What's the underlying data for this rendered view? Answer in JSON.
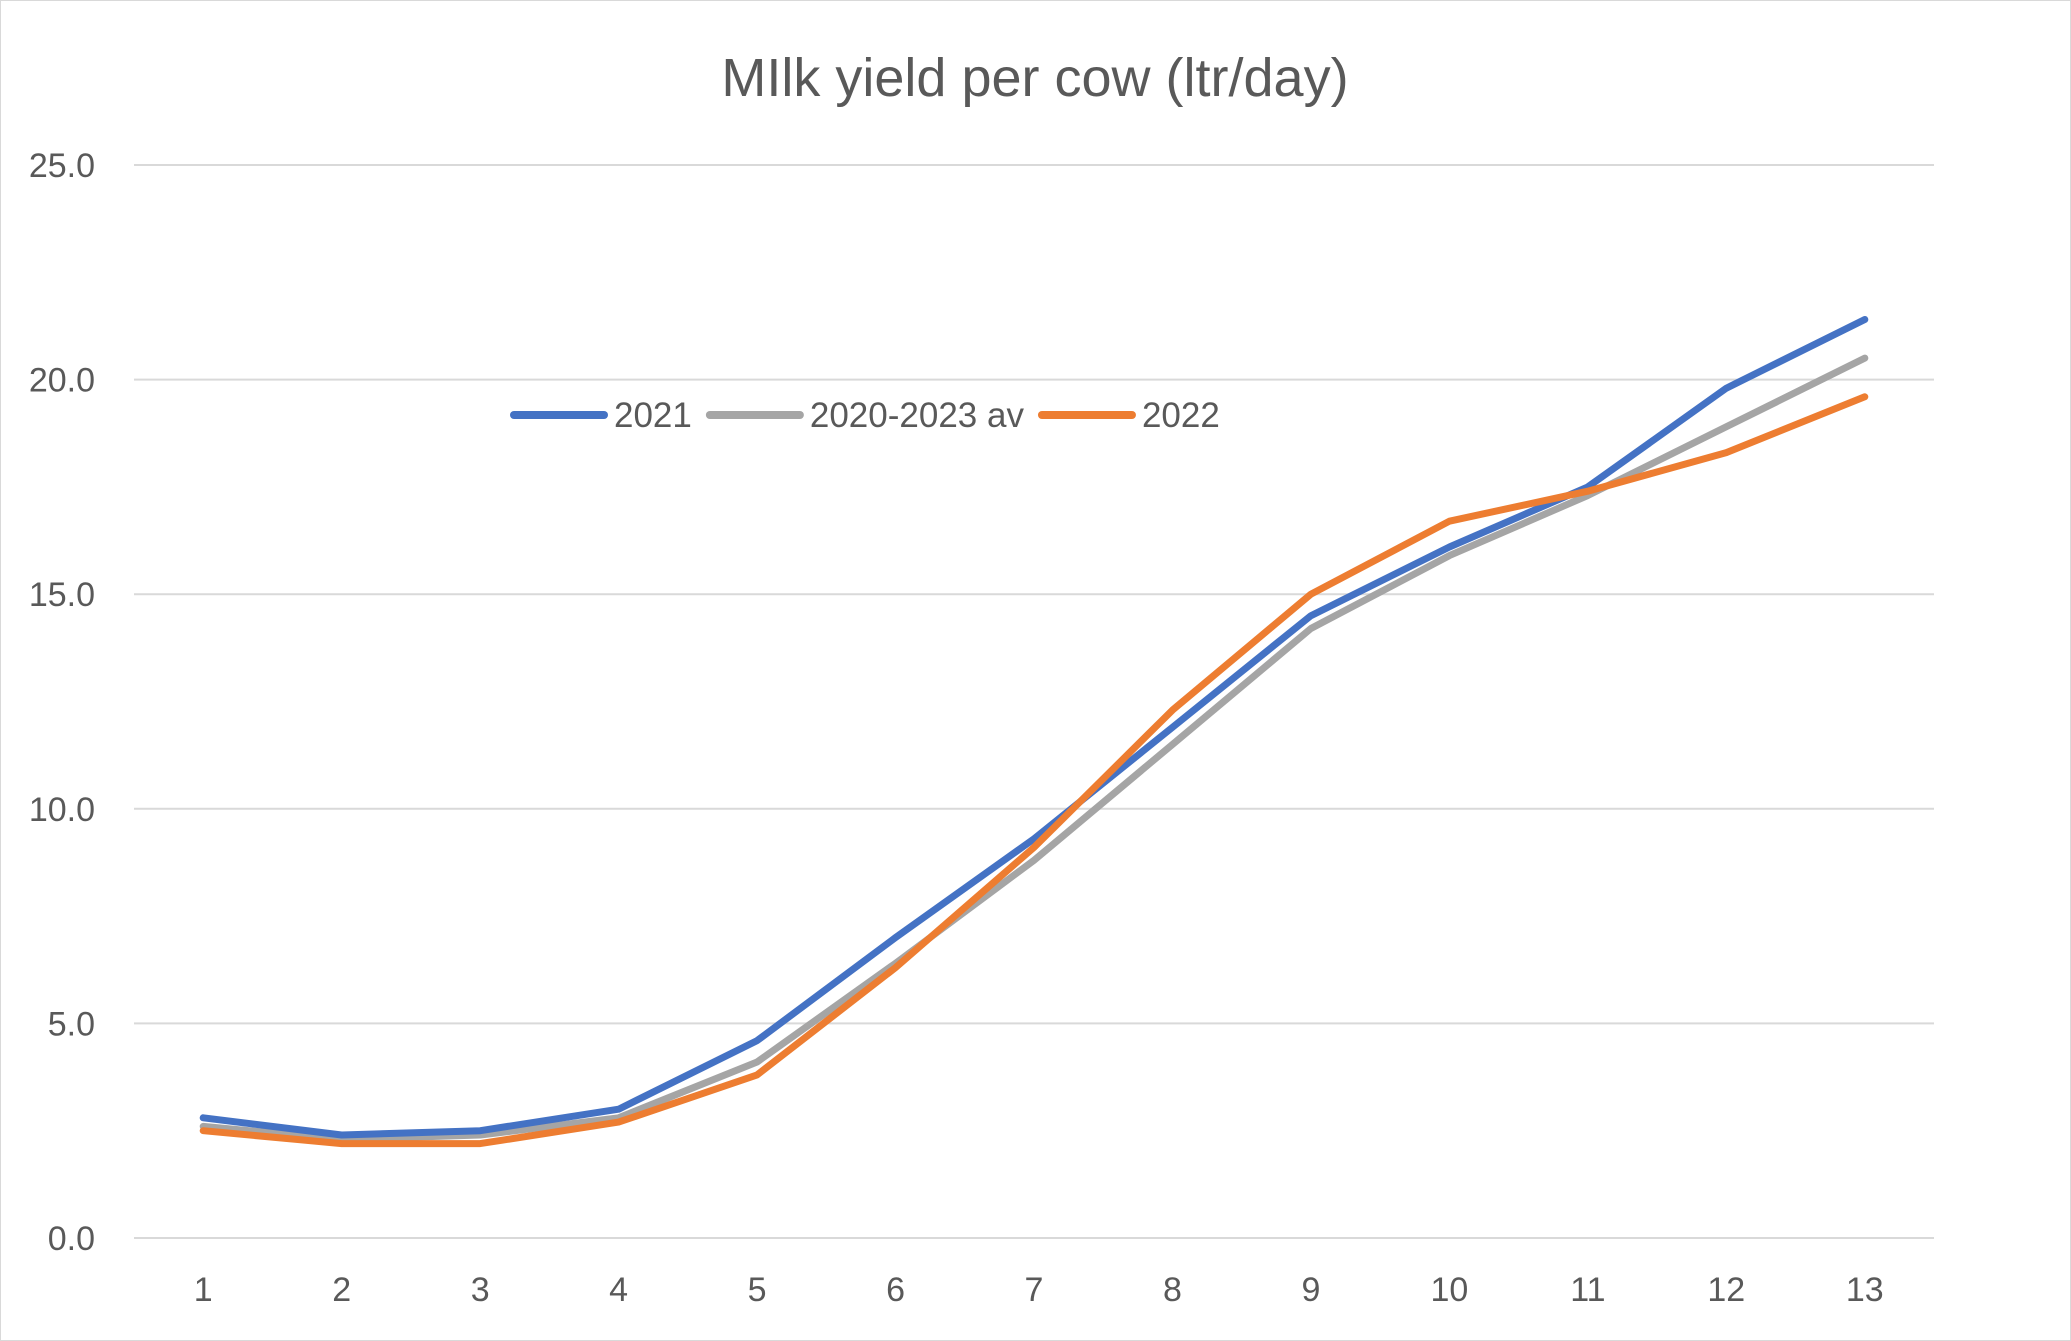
{
  "chart_data": {
    "type": "line",
    "title": "MIlk yield per cow (ltr/day)",
    "xlabel": "",
    "ylabel": "",
    "categories": [
      "1",
      "2",
      "3",
      "4",
      "5",
      "6",
      "7",
      "8",
      "9",
      "10",
      "11",
      "12",
      "13"
    ],
    "ylim": [
      0,
      25
    ],
    "yticks": [
      "0.0",
      "5.0",
      "10.0",
      "15.0",
      "20.0",
      "25.0"
    ],
    "grid": true,
    "legend_position": "top-center",
    "series": [
      {
        "name": "2021",
        "color": "#4472C4",
        "values": [
          2.8,
          2.4,
          2.5,
          3.0,
          4.6,
          7.0,
          9.3,
          11.9,
          14.5,
          16.1,
          17.5,
          19.8,
          21.4
        ]
      },
      {
        "name": "2020-2023 av",
        "color": "#A5A5A5",
        "values": [
          2.6,
          2.3,
          2.4,
          2.8,
          4.1,
          6.4,
          8.8,
          11.5,
          14.2,
          15.9,
          17.3,
          18.9,
          20.5
        ]
      },
      {
        "name": "2022",
        "color": "#ED7D31",
        "values": [
          2.5,
          2.2,
          2.2,
          2.7,
          3.8,
          6.3,
          9.1,
          12.3,
          15.0,
          16.7,
          17.4,
          18.3,
          19.6
        ]
      }
    ]
  }
}
